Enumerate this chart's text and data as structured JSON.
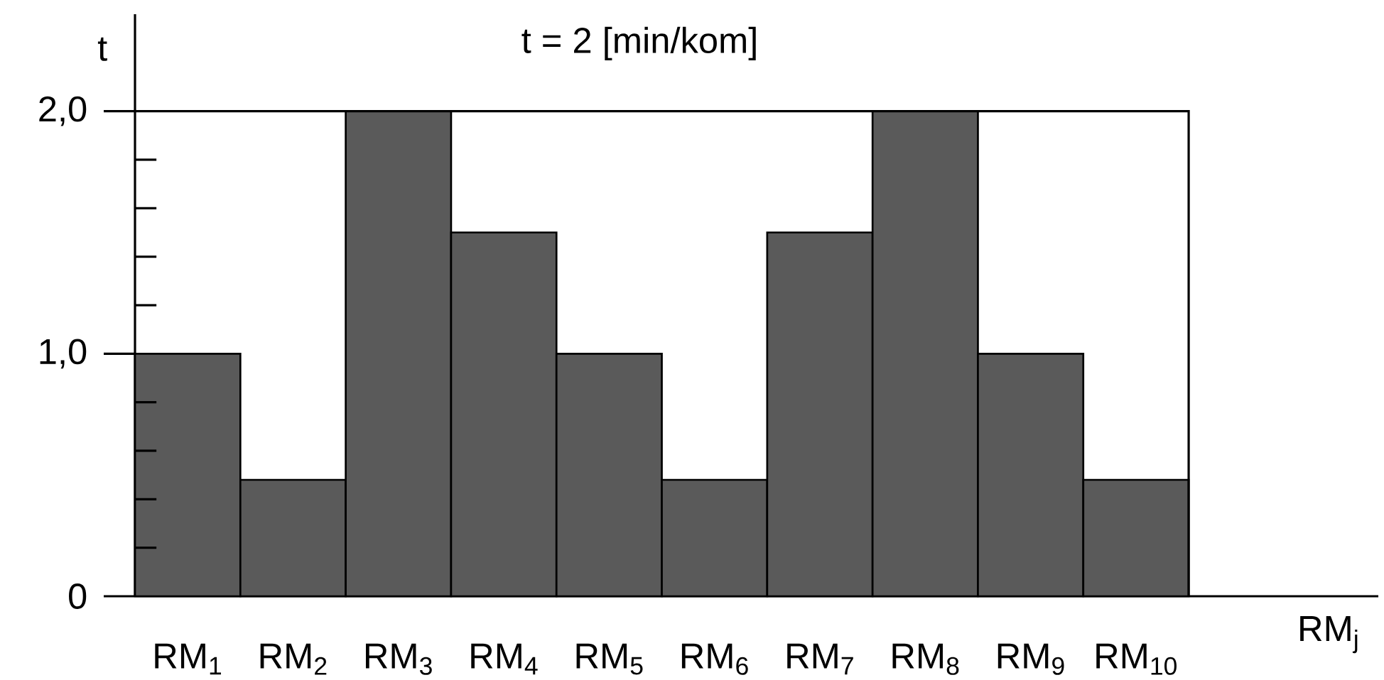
{
  "chart_data": {
    "type": "bar",
    "title": "t = 2 [min/kom]",
    "xlabel": "RM$_{j}$",
    "ylabel": "t",
    "categories": [
      "RM$_{1}$",
      "RM$_{2}$",
      "RM$_{3}$",
      "RM$_{4}$",
      "RM$_{5}$",
      "RM$_{6}$",
      "RM$_{7}$",
      "RM$_{8}$",
      "RM$_{9}$",
      "RM$_{10}$"
    ],
    "values": [
      1.0,
      0.48,
      2.0,
      1.5,
      1.0,
      0.48,
      1.5,
      2.0,
      1.0,
      0.48
    ],
    "color": "#5a5a5a",
    "ylim": [
      0,
      2.4
    ],
    "yticks": [
      0,
      {
        "value": 0.2,
        "label": null
      },
      {
        "value": 0.4,
        "label": null
      },
      {
        "value": 0.6,
        "label": null
      },
      {
        "value": 0.8,
        "label": null
      },
      {
        "value": 1,
        "label": "1,0"
      },
      {
        "value": 1.2,
        "label": null
      },
      {
        "value": 1.4,
        "label": null
      },
      {
        "value": 1.6,
        "label": null
      },
      {
        "value": 1.8,
        "label": null
      },
      {
        "value": 2,
        "label": "2,0"
      }
    ],
    "ref_lines": [
      {
        "axis": "y",
        "value": 2
      }
    ],
    "grid": false
  }
}
